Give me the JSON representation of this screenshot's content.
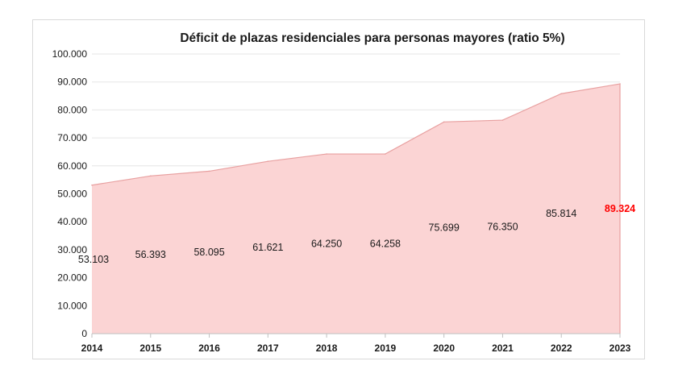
{
  "chart_data": {
    "type": "area",
    "title": "Déficit de plazas residenciales para personas mayores (ratio 5%)",
    "xlabel": "",
    "ylabel": "",
    "categories": [
      "2014",
      "2015",
      "2016",
      "2017",
      "2018",
      "2019",
      "2020",
      "2021",
      "2022",
      "2023"
    ],
    "values": [
      53103,
      56393,
      58095,
      61621,
      64250,
      64258,
      75699,
      76350,
      85814,
      89324
    ],
    "data_labels": [
      "53.103",
      "56.393",
      "58.095",
      "61.621",
      "64.250",
      "64.258",
      "75.699",
      "76.350",
      "85.814",
      "89.324"
    ],
    "highlight_index": 9,
    "ylim": [
      0,
      100000
    ],
    "yticks": [
      0,
      10000,
      20000,
      30000,
      40000,
      50000,
      60000,
      70000,
      80000,
      90000,
      100000
    ],
    "ytick_labels": [
      "0",
      "10.000",
      "20.000",
      "30.000",
      "40.000",
      "50.000",
      "60.000",
      "70.000",
      "80.000",
      "90.000",
      "100.000"
    ],
    "grid": true,
    "legend": "none",
    "colors": {
      "area_fill": "#fbd4d4",
      "area_edge": "#e8a0a0",
      "gridline": "#e6e6e6",
      "highlight_label": "#ff0000"
    }
  }
}
